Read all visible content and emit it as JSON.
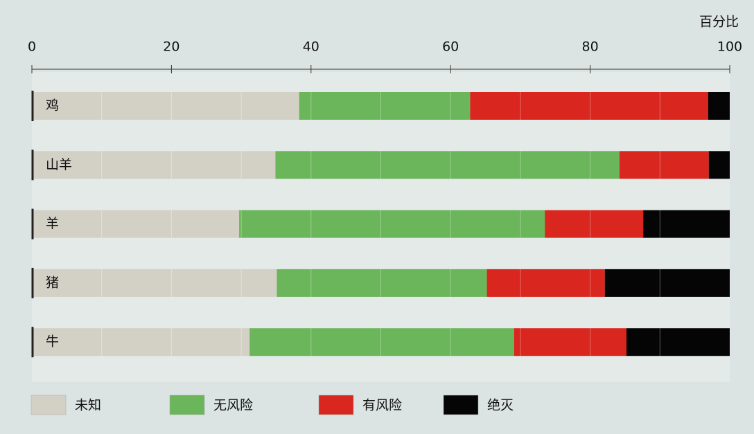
{
  "chart_data": {
    "type": "stacked-barh",
    "x_label": "百分比",
    "categories": [
      "鸡",
      "山羊",
      "羊",
      "猪",
      "牛"
    ],
    "series": [
      {
        "name": "未知",
        "color": "#d3d0c6",
        "values": [
          38.3,
          34.9,
          29.7,
          35.1,
          31.2
        ]
      },
      {
        "name": "无风险",
        "color": "#6bb55a",
        "values": [
          24.5,
          49.3,
          43.8,
          30.1,
          37.9
        ]
      },
      {
        "name": "有风险",
        "color": "#d9261e",
        "values": [
          34.1,
          12.8,
          14.1,
          16.9,
          16.1
        ]
      },
      {
        "name": "绝灭",
        "color": "#050505",
        "values": [
          3.1,
          3.0,
          12.4,
          17.9,
          14.8
        ]
      }
    ],
    "xlim": [
      0,
      100
    ],
    "xticks": [
      0,
      20,
      40,
      60,
      80,
      100
    ]
  }
}
